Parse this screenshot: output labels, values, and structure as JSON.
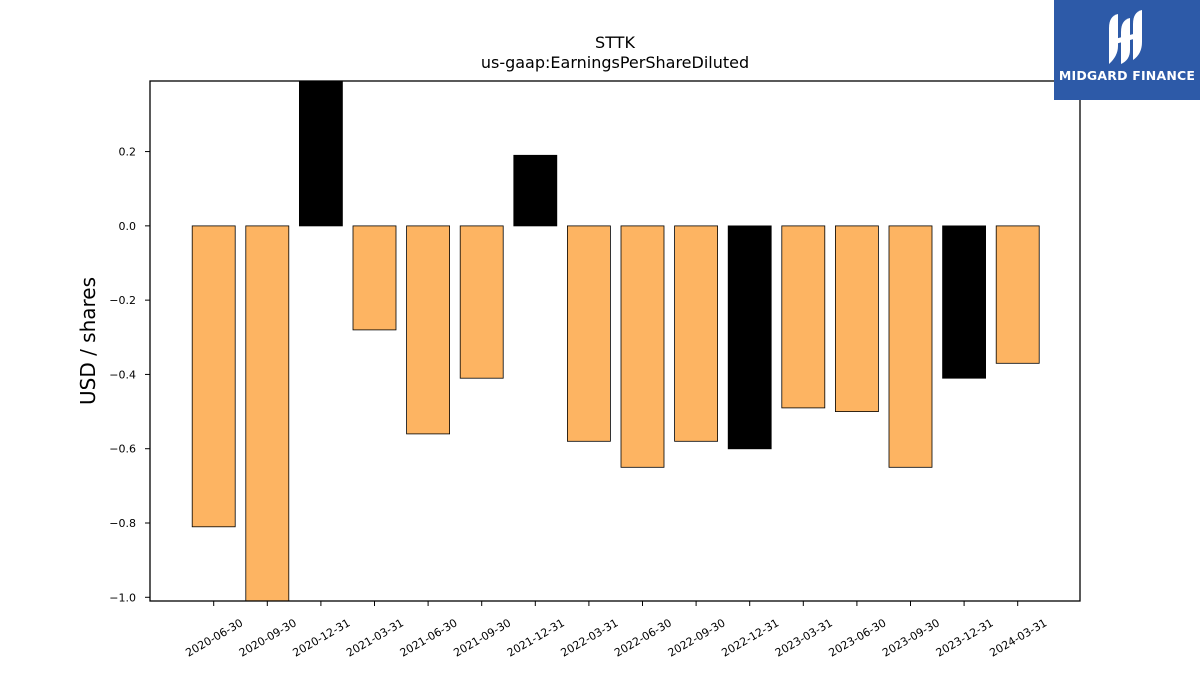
{
  "brand": {
    "name": "MIDGARD FINANCE",
    "logo_icon": "midgard-logo-icon",
    "background": "#2d5aa8"
  },
  "chart_data": {
    "type": "bar",
    "title": "STTK",
    "subtitle": "us-gaap:EarningsPerShareDiluted",
    "xlabel": "",
    "ylabel": "USD / shares",
    "categories": [
      "2020-06-30",
      "2020-09-30",
      "2020-12-31",
      "2021-03-31",
      "2021-06-30",
      "2021-09-30",
      "2021-12-31",
      "2022-03-31",
      "2022-06-30",
      "2022-09-30",
      "2022-12-31",
      "2023-03-31",
      "2023-06-30",
      "2023-09-30",
      "2023-12-31",
      "2024-03-31"
    ],
    "values": [
      -0.81,
      -1.01,
      0.39,
      -0.28,
      -0.56,
      -0.41,
      0.19,
      -0.58,
      -0.65,
      -0.58,
      -0.6,
      -0.49,
      -0.5,
      -0.65,
      -0.41,
      -0.37
    ],
    "bar_colors": [
      "#fdb462",
      "#fdb462",
      "#000000",
      "#fdb462",
      "#fdb462",
      "#fdb462",
      "#000000",
      "#fdb462",
      "#fdb462",
      "#fdb462",
      "#000000",
      "#fdb462",
      "#fdb462",
      "#fdb462",
      "#000000",
      "#fdb462"
    ],
    "ylim": [
      -1.01,
      0.39
    ],
    "yticks": [
      -1.0,
      -0.8,
      -0.6,
      -0.4,
      -0.2,
      0.0,
      0.2
    ],
    "ytick_labels": [
      "−1.0",
      "−0.8",
      "−0.6",
      "−0.4",
      "−0.2",
      "0.0",
      "0.2"
    ],
    "grid": false,
    "legend": "none"
  }
}
